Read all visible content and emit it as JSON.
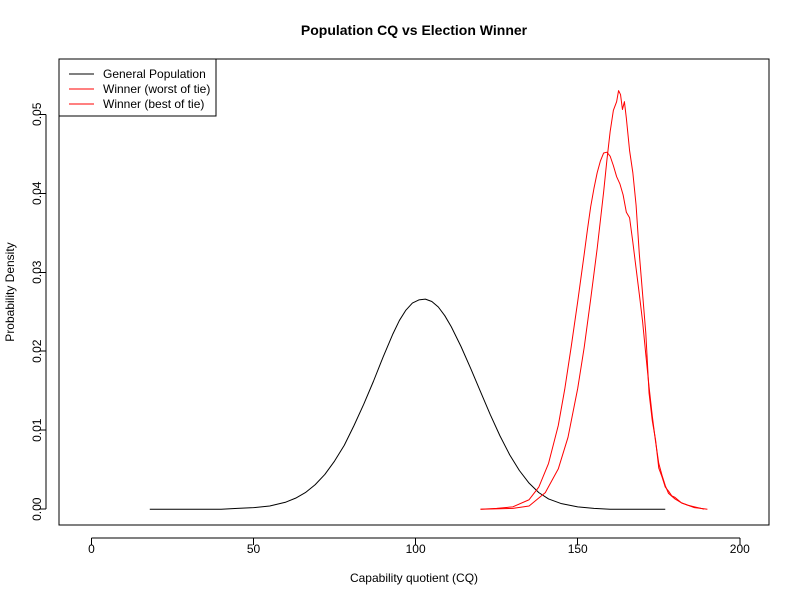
{
  "chart_data": {
    "type": "line",
    "title": "Population CQ vs Election Winner",
    "xlabel": "Capability quotient (CQ)",
    "ylabel": "Probability Density",
    "xlim": [
      -10,
      209
    ],
    "ylim": [
      -0.002,
      0.057
    ],
    "xticks": [
      0,
      50,
      100,
      150,
      200
    ],
    "yticks": [
      0.0,
      0.01,
      0.02,
      0.03,
      0.04,
      0.05
    ],
    "xtick_labels": [
      "0",
      "50",
      "100",
      "150",
      "200"
    ],
    "ytick_labels": [
      "0.00",
      "0.01",
      "0.02",
      "0.03",
      "0.04",
      "0.05"
    ],
    "grid": false,
    "legend_position": "top-left",
    "series": [
      {
        "name": "General Population",
        "color": "#000000",
        "x": [
          18,
          30,
          40,
          45,
          50,
          55,
          60,
          63,
          66,
          69,
          72,
          75,
          78,
          81,
          84,
          87,
          90,
          93,
          95,
          97,
          99,
          101,
          103,
          105,
          107,
          109,
          111,
          114,
          117,
          120,
          123,
          126,
          129,
          132,
          135,
          138,
          141,
          145,
          150,
          155,
          160,
          170,
          177
        ],
        "y": [
          0.0,
          0.0,
          0.0,
          0.0001,
          0.0002,
          0.0004,
          0.0009,
          0.0014,
          0.0021,
          0.0031,
          0.0044,
          0.0061,
          0.0081,
          0.0106,
          0.0133,
          0.0162,
          0.0193,
          0.0222,
          0.0239,
          0.0252,
          0.0261,
          0.0265,
          0.0266,
          0.0263,
          0.0256,
          0.0245,
          0.0231,
          0.0206,
          0.0178,
          0.0149,
          0.012,
          0.0093,
          0.0069,
          0.0049,
          0.0033,
          0.0021,
          0.0013,
          0.0007,
          0.0003,
          0.0001,
          0.0,
          0.0,
          0.0
        ]
      },
      {
        "name": "Winner (worst of tie)",
        "color": "#ff0000",
        "x": [
          120,
          125,
          130,
          135,
          138,
          141,
          144,
          146,
          148,
          150,
          152,
          153,
          154,
          155,
          156,
          157,
          158,
          159,
          160,
          161,
          162,
          163,
          164,
          165,
          166,
          167,
          168,
          169,
          170,
          171,
          172,
          173,
          174,
          175,
          176,
          177,
          178,
          180,
          182,
          184,
          186,
          188,
          189
        ],
        "y": [
          0.0,
          0.0001,
          0.0003,
          0.0012,
          0.0028,
          0.0058,
          0.0106,
          0.0152,
          0.0206,
          0.0263,
          0.0323,
          0.0354,
          0.0383,
          0.0406,
          0.0426,
          0.0441,
          0.0451,
          0.0452,
          0.0447,
          0.0435,
          0.0421,
          0.0412,
          0.0398,
          0.0376,
          0.0369,
          0.0338,
          0.0305,
          0.0272,
          0.0238,
          0.0196,
          0.0155,
          0.0118,
          0.0086,
          0.0058,
          0.0043,
          0.003,
          0.002,
          0.0013,
          0.0008,
          0.0005,
          0.0002,
          0.0001,
          0.0
        ]
      },
      {
        "name": "Winner (best of tie)",
        "color": "#ff0000",
        "x": [
          120,
          130,
          135,
          140,
          144,
          147,
          150,
          152,
          154,
          156,
          157,
          158,
          159,
          160,
          161,
          162,
          162.6,
          163.2,
          163.8,
          164.4,
          165,
          166,
          167,
          168,
          169,
          170,
          171,
          172,
          173,
          174,
          175,
          176,
          177,
          178,
          179,
          180,
          182,
          184,
          186,
          188,
          190
        ],
        "y": [
          0.0,
          0.0001,
          0.0004,
          0.0021,
          0.0051,
          0.0091,
          0.0153,
          0.0205,
          0.0266,
          0.033,
          0.0366,
          0.0402,
          0.0442,
          0.0478,
          0.0505,
          0.0516,
          0.053,
          0.0525,
          0.0506,
          0.0516,
          0.0495,
          0.0454,
          0.0426,
          0.0385,
          0.0323,
          0.0273,
          0.0223,
          0.0147,
          0.0112,
          0.0088,
          0.0052,
          0.0041,
          0.0028,
          0.0023,
          0.0017,
          0.0015,
          0.0008,
          0.0005,
          0.0003,
          0.0001,
          0.0
        ]
      }
    ]
  }
}
